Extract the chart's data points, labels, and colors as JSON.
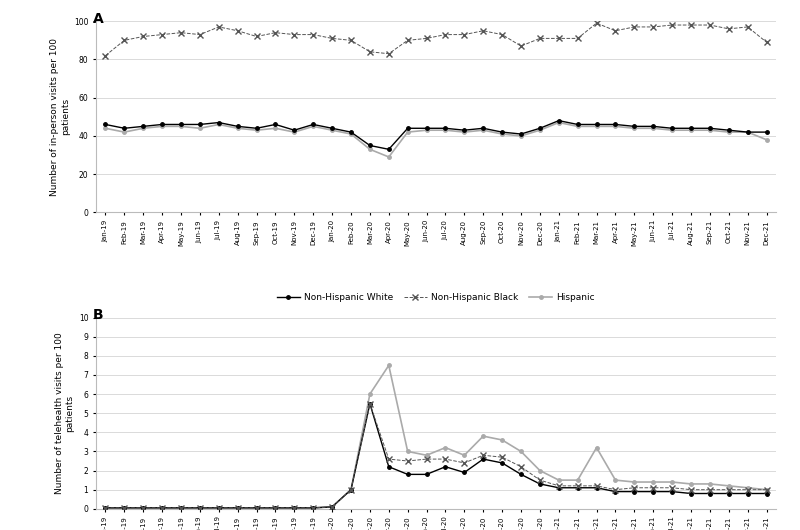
{
  "months": [
    "Jan-19",
    "Feb-19",
    "Mar-19",
    "Apr-19",
    "May-19",
    "Jun-19",
    "Jul-19",
    "Aug-19",
    "Sep-19",
    "Oct-19",
    "Nov-19",
    "Dec-19",
    "Jan-20",
    "Feb-20",
    "Mar-20",
    "Apr-20",
    "May-20",
    "Jun-20",
    "Jul-20",
    "Aug-20",
    "Sep-20",
    "Oct-20",
    "Nov-20",
    "Dec-20",
    "Jan-21",
    "Feb-21",
    "Mar-21",
    "Apr-21",
    "May-21",
    "Jun-21",
    "Jul-21",
    "Aug-21",
    "Sep-21",
    "Oct-21",
    "Nov-21",
    "Dec-21"
  ],
  "panel_A": {
    "ylabel": "Number of in-person visits per 100\npatients",
    "ylim": [
      0,
      100
    ],
    "yticks": [
      0,
      20,
      40,
      60,
      80,
      100
    ],
    "nhw": [
      46,
      44,
      45,
      46,
      46,
      46,
      47,
      45,
      44,
      46,
      43,
      46,
      44,
      42,
      35,
      33,
      44,
      44,
      44,
      43,
      44,
      42,
      41,
      44,
      48,
      46,
      46,
      46,
      45,
      45,
      44,
      44,
      44,
      43,
      42,
      42
    ],
    "nhb": [
      82,
      90,
      92,
      93,
      94,
      93,
      97,
      95,
      92,
      94,
      93,
      93,
      91,
      90,
      84,
      83,
      90,
      91,
      93,
      93,
      95,
      93,
      87,
      91,
      91,
      91,
      99,
      95,
      97,
      97,
      98,
      98,
      98,
      96,
      97,
      89
    ],
    "hisp": [
      44,
      42,
      44,
      45,
      45,
      44,
      46,
      44,
      43,
      44,
      42,
      45,
      43,
      41,
      33,
      29,
      42,
      43,
      43,
      42,
      43,
      41,
      40,
      43,
      47,
      45,
      45,
      45,
      44,
      44,
      43,
      43,
      43,
      42,
      42,
      38
    ]
  },
  "panel_B": {
    "ylabel": "Number of telehealth visits per 100\npatients",
    "ylim": [
      0,
      10
    ],
    "yticks": [
      0,
      1,
      2,
      3,
      4,
      5,
      6,
      7,
      8,
      9,
      10
    ],
    "nhw": [
      0.05,
      0.05,
      0.05,
      0.05,
      0.05,
      0.05,
      0.05,
      0.05,
      0.05,
      0.05,
      0.05,
      0.05,
      0.1,
      1.0,
      5.5,
      2.2,
      1.8,
      1.8,
      2.2,
      1.9,
      2.6,
      2.4,
      1.8,
      1.3,
      1.1,
      1.1,
      1.1,
      0.9,
      0.9,
      0.9,
      0.9,
      0.8,
      0.8,
      0.8,
      0.8,
      0.8
    ],
    "nhb": [
      0.05,
      0.05,
      0.05,
      0.05,
      0.05,
      0.05,
      0.05,
      0.05,
      0.05,
      0.05,
      0.05,
      0.05,
      0.1,
      1.0,
      5.5,
      2.6,
      2.5,
      2.6,
      2.6,
      2.4,
      2.8,
      2.7,
      2.2,
      1.5,
      1.2,
      1.2,
      1.2,
      1.0,
      1.1,
      1.1,
      1.1,
      1.0,
      1.0,
      1.0,
      1.0,
      1.0
    ],
    "hisp": [
      0.05,
      0.05,
      0.05,
      0.05,
      0.05,
      0.05,
      0.05,
      0.05,
      0.05,
      0.05,
      0.05,
      0.05,
      0.1,
      1.0,
      6.0,
      7.5,
      3.0,
      2.8,
      3.2,
      2.8,
      3.8,
      3.6,
      3.0,
      2.0,
      1.5,
      1.5,
      3.2,
      1.5,
      1.4,
      1.4,
      1.4,
      1.3,
      1.3,
      1.2,
      1.1,
      1.0
    ]
  },
  "legend": {
    "nhw_label": "Non-Hispanic White",
    "nhb_label": "Non-Hispanic Black",
    "hisp_label": "Hispanic"
  },
  "nhw_color": "#000000",
  "nhb_color": "#555555",
  "hisp_color": "#aaaaaa",
  "bg_color": "#ffffff",
  "label_A": "A",
  "label_B": "B"
}
